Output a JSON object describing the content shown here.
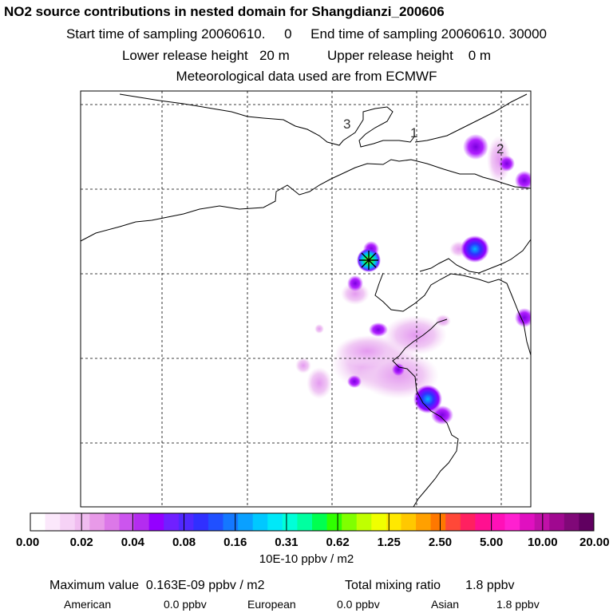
{
  "title": "NO2 source contributions in nested domain for Shangdianzi_200606",
  "header": {
    "start_label": "Start time of sampling",
    "start_value": "20060610.     0",
    "end_label": "End time of sampling",
    "end_value": "20060610. 30000",
    "lower_label": "Lower release height",
    "lower_value": "20 m",
    "upper_label": "Upper release height",
    "upper_value": "0 m",
    "met_text": "Meteorological data used are from ECMWF"
  },
  "map": {
    "grid_labels": [
      "3",
      "1",
      "2"
    ],
    "marker": "star-cross receptor marker"
  },
  "colorbar": {
    "ticks": [
      "0.00",
      "0.02",
      "0.04",
      "0.08",
      "0.16",
      "0.31",
      "0.62",
      "1.25",
      "2.50",
      "5.00",
      "10.00",
      "20.00"
    ],
    "units": "10E-10 ppbv / m2",
    "colors": [
      "#ffffff",
      "#fbe8fb",
      "#f6d2f6",
      "#f0bcf0",
      "#e89ae8",
      "#dc78e8",
      "#cc55ee",
      "#b42cf0",
      "#9400ff",
      "#7020ff",
      "#5028ff",
      "#3030ff",
      "#2050ff",
      "#1478ff",
      "#0aa0ff",
      "#00c8ff",
      "#00e8f8",
      "#00ffd8",
      "#00ffa0",
      "#00ff50",
      "#30ff00",
      "#80ff00",
      "#c0ff00",
      "#f0ff00",
      "#ffe800",
      "#ffc800",
      "#ffa000",
      "#ff7800",
      "#ff4838",
      "#ff2060",
      "#ff1090",
      "#ff10b8",
      "#ff20d0",
      "#e010c0",
      "#c010a8",
      "#a00890",
      "#800878",
      "#600060"
    ]
  },
  "chart_data": {
    "type": "heatmap",
    "title": "NO2 source contributions in nested domain for Shangdianzi_200606",
    "colorbar_ticks": [
      0.0,
      0.02,
      0.04,
      0.08,
      0.16,
      0.31,
      0.62,
      1.25,
      2.5,
      5.0,
      10.0,
      20.0
    ],
    "units": "10E-10 ppbv / m2",
    "max_value_label": "Maximum value",
    "max_value": "0.163E-09 ppbv / m2",
    "total_label": "Total mixing ratio",
    "total_value": "1.8 ppbv",
    "regions": [
      {
        "name": "American",
        "value": "0.0 ppbv"
      },
      {
        "name": "European",
        "value": "0.0 ppbv"
      },
      {
        "name": "Asian",
        "value": "1.8 ppbv"
      }
    ]
  }
}
